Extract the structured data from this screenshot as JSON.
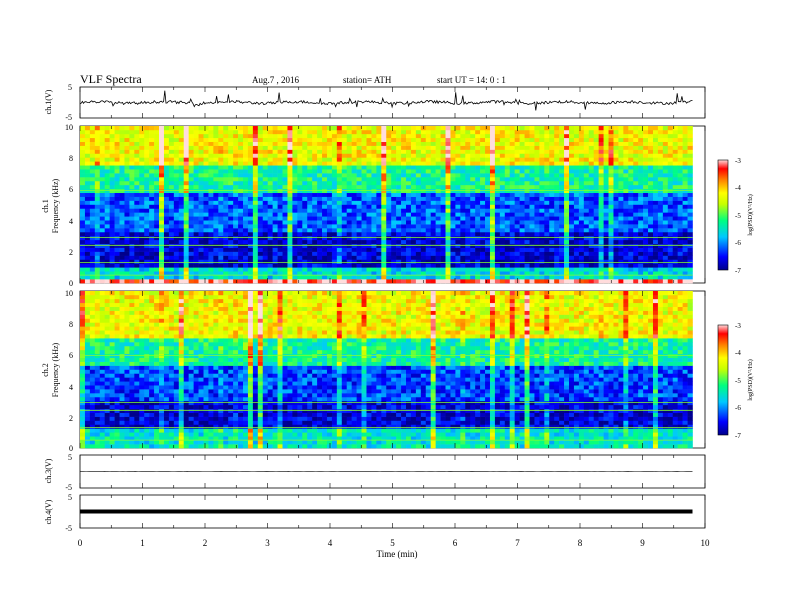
{
  "header": {
    "title": "VLF  Spectra",
    "date": "Aug.7  , 2016",
    "station": "station= ATH",
    "start": "start  UT =   14: 0  : 1"
  },
  "chart_data": [
    {
      "type": "line",
      "panel": "ch1-waveform",
      "ylabel": "ch.1(V)",
      "ylim": [
        -5,
        5
      ],
      "y_ticks": [
        "5",
        "-5"
      ],
      "xlim": [
        0,
        10
      ],
      "baseline_v": 0,
      "series": [
        {
          "values_description": "noisy waveform around 0 V with spikes",
          "x_range_min": [
            0,
            9.8
          ]
        }
      ]
    },
    {
      "type": "heatmap",
      "panel": "ch1-spectrogram",
      "ylabel_lines": [
        "ch.1",
        "Frequency  (kHz)"
      ],
      "ylim": [
        0,
        10
      ],
      "y_ticks": [
        "0",
        "2",
        "4",
        "6",
        "8",
        "10"
      ],
      "xlim": [
        0,
        10
      ],
      "data_x_range_min": [
        0,
        9.8
      ],
      "colorbar": {
        "label": "log(PSD)(V²/Hz)",
        "range": [
          -7,
          -3
        ],
        "ticks": [
          "-3",
          "-4",
          "-5",
          "-6",
          "-7"
        ]
      },
      "bands": [
        {
          "from_khz": 0.0,
          "to_khz": 0.2,
          "level": -3.2
        },
        {
          "from_khz": 0.2,
          "to_khz": 1.0,
          "level": -5.6
        },
        {
          "from_khz": 1.0,
          "to_khz": 3.2,
          "level": -6.7
        },
        {
          "from_khz": 3.2,
          "to_khz": 5.8,
          "level": -6.2
        },
        {
          "from_khz": 5.8,
          "to_khz": 7.5,
          "level": -5.3
        },
        {
          "from_khz": 7.5,
          "to_khz": 10.0,
          "level": -4.3
        }
      ]
    },
    {
      "type": "heatmap",
      "panel": "ch2-spectrogram",
      "ylabel_lines": [
        "ch.2",
        "Frequency  (kHz)"
      ],
      "ylim": [
        0,
        10
      ],
      "y_ticks": [
        "0",
        "2",
        "4",
        "6",
        "8",
        "10"
      ],
      "xlim": [
        0,
        10
      ],
      "data_x_range_min": [
        0,
        9.8
      ],
      "colorbar": {
        "label": "log(PSD)(V²/Hz)",
        "range": [
          -7,
          -3
        ],
        "ticks": [
          "-3",
          "-4",
          "-5",
          "-6",
          "-7"
        ]
      },
      "bands": [
        {
          "from_khz": 0.0,
          "to_khz": 1.2,
          "level": -5.5
        },
        {
          "from_khz": 1.2,
          "to_khz": 3.0,
          "level": -6.7
        },
        {
          "from_khz": 3.0,
          "to_khz": 5.2,
          "level": -6.3
        },
        {
          "from_khz": 5.2,
          "to_khz": 7.0,
          "level": -5.3
        },
        {
          "from_khz": 7.0,
          "to_khz": 10.0,
          "level": -4.3
        }
      ]
    },
    {
      "type": "line",
      "panel": "ch3-waveform",
      "ylabel": "ch.3(V)",
      "ylim": [
        -5,
        5
      ],
      "y_ticks": [
        "5",
        "-5"
      ],
      "xlim": [
        0,
        10
      ],
      "baseline_v": 0,
      "data_x_range_min": [
        0,
        9.8
      ]
    },
    {
      "type": "line",
      "panel": "ch4-waveform",
      "ylabel": "ch.4(V)",
      "ylim": [
        -5,
        5
      ],
      "y_ticks": [
        "5",
        "-5"
      ],
      "xlim": [
        0,
        10
      ],
      "baseline_v": 0,
      "data_x_range_min": [
        0,
        9.8
      ],
      "xlabel": "Time  (min)",
      "x_ticks": [
        "0",
        "1",
        "2",
        "3",
        "4",
        "5",
        "6",
        "7",
        "8",
        "9",
        "10"
      ]
    }
  ]
}
